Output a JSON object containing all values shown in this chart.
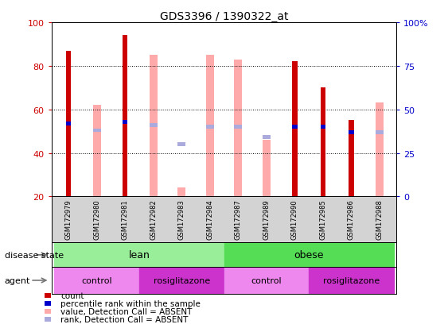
{
  "title": "GDS3396 / 1390322_at",
  "samples": [
    "GSM172979",
    "GSM172980",
    "GSM172981",
    "GSM172982",
    "GSM172983",
    "GSM172984",
    "GSM172987",
    "GSM172989",
    "GSM172990",
    "GSM172985",
    "GSM172986",
    "GSM172988"
  ],
  "count": [
    87,
    0,
    94,
    0,
    0,
    0,
    0,
    0,
    82,
    70,
    55,
    0
  ],
  "percentile_rank": [
    42,
    0,
    43,
    0,
    0,
    0,
    0,
    0,
    40,
    40,
    37,
    0
  ],
  "value_absent": [
    0,
    62,
    0,
    85,
    24,
    85,
    83,
    46,
    0,
    0,
    0,
    63
  ],
  "rank_absent": [
    0,
    38,
    0,
    41,
    30,
    40,
    40,
    34,
    0,
    0,
    0,
    37
  ],
  "ylim_left": [
    20,
    100
  ],
  "yticks_left": [
    20,
    40,
    60,
    80,
    100
  ],
  "yticks_right": [
    0,
    25,
    50,
    75,
    100
  ],
  "ytick_labels_right": [
    "0",
    "25",
    "50",
    "75",
    "100%"
  ],
  "count_color": "#cc0000",
  "rank_color": "#0000cc",
  "value_absent_color": "#ffaaaa",
  "rank_absent_color": "#aaaadd",
  "lean_color": "#99ee99",
  "obese_color": "#55dd55",
  "control_color": "#ee88ee",
  "rosiglitazone_color": "#cc33cc",
  "bg_color": "#ffffff",
  "tick_area_color": "#d3d3d3"
}
